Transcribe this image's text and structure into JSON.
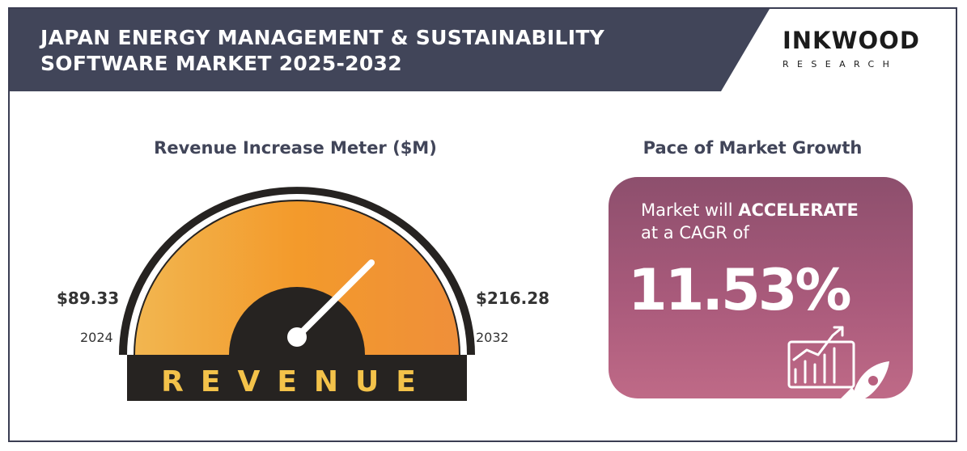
{
  "header": {
    "title_line1": "JAPAN ENERGY MANAGEMENT & SUSTAINABILITY",
    "title_line2": "SOFTWARE MARKET 2025-2032",
    "logo_main": "INKWOOD",
    "logo_sub": "RESEARCH"
  },
  "meter": {
    "title": "Revenue Increase Meter ($M)",
    "start_value": "$89.33",
    "start_year": "2024",
    "end_value": "$216.28",
    "end_year": "2032",
    "band_label": "REVENUE"
  },
  "growth": {
    "title": "Pace of Market Growth",
    "text_prefix": "Market will ",
    "text_emphasis": "ACCELERATE",
    "text_line2": "at a CAGR of",
    "cagr": "11.53%"
  },
  "colors": {
    "header_bg": "#414559",
    "gauge_orange": "#f39a2b",
    "gauge_dark": "#262321",
    "band_text": "#f3c24a",
    "card_top": "#8d4f6d",
    "card_bottom": "#bf6a87"
  },
  "chart_data": {
    "type": "gauge",
    "unit": "$M",
    "points": [
      {
        "x": "2024",
        "y": 89.33
      },
      {
        "x": "2032",
        "y": 216.28
      }
    ],
    "cagr_percent": 11.53
  }
}
